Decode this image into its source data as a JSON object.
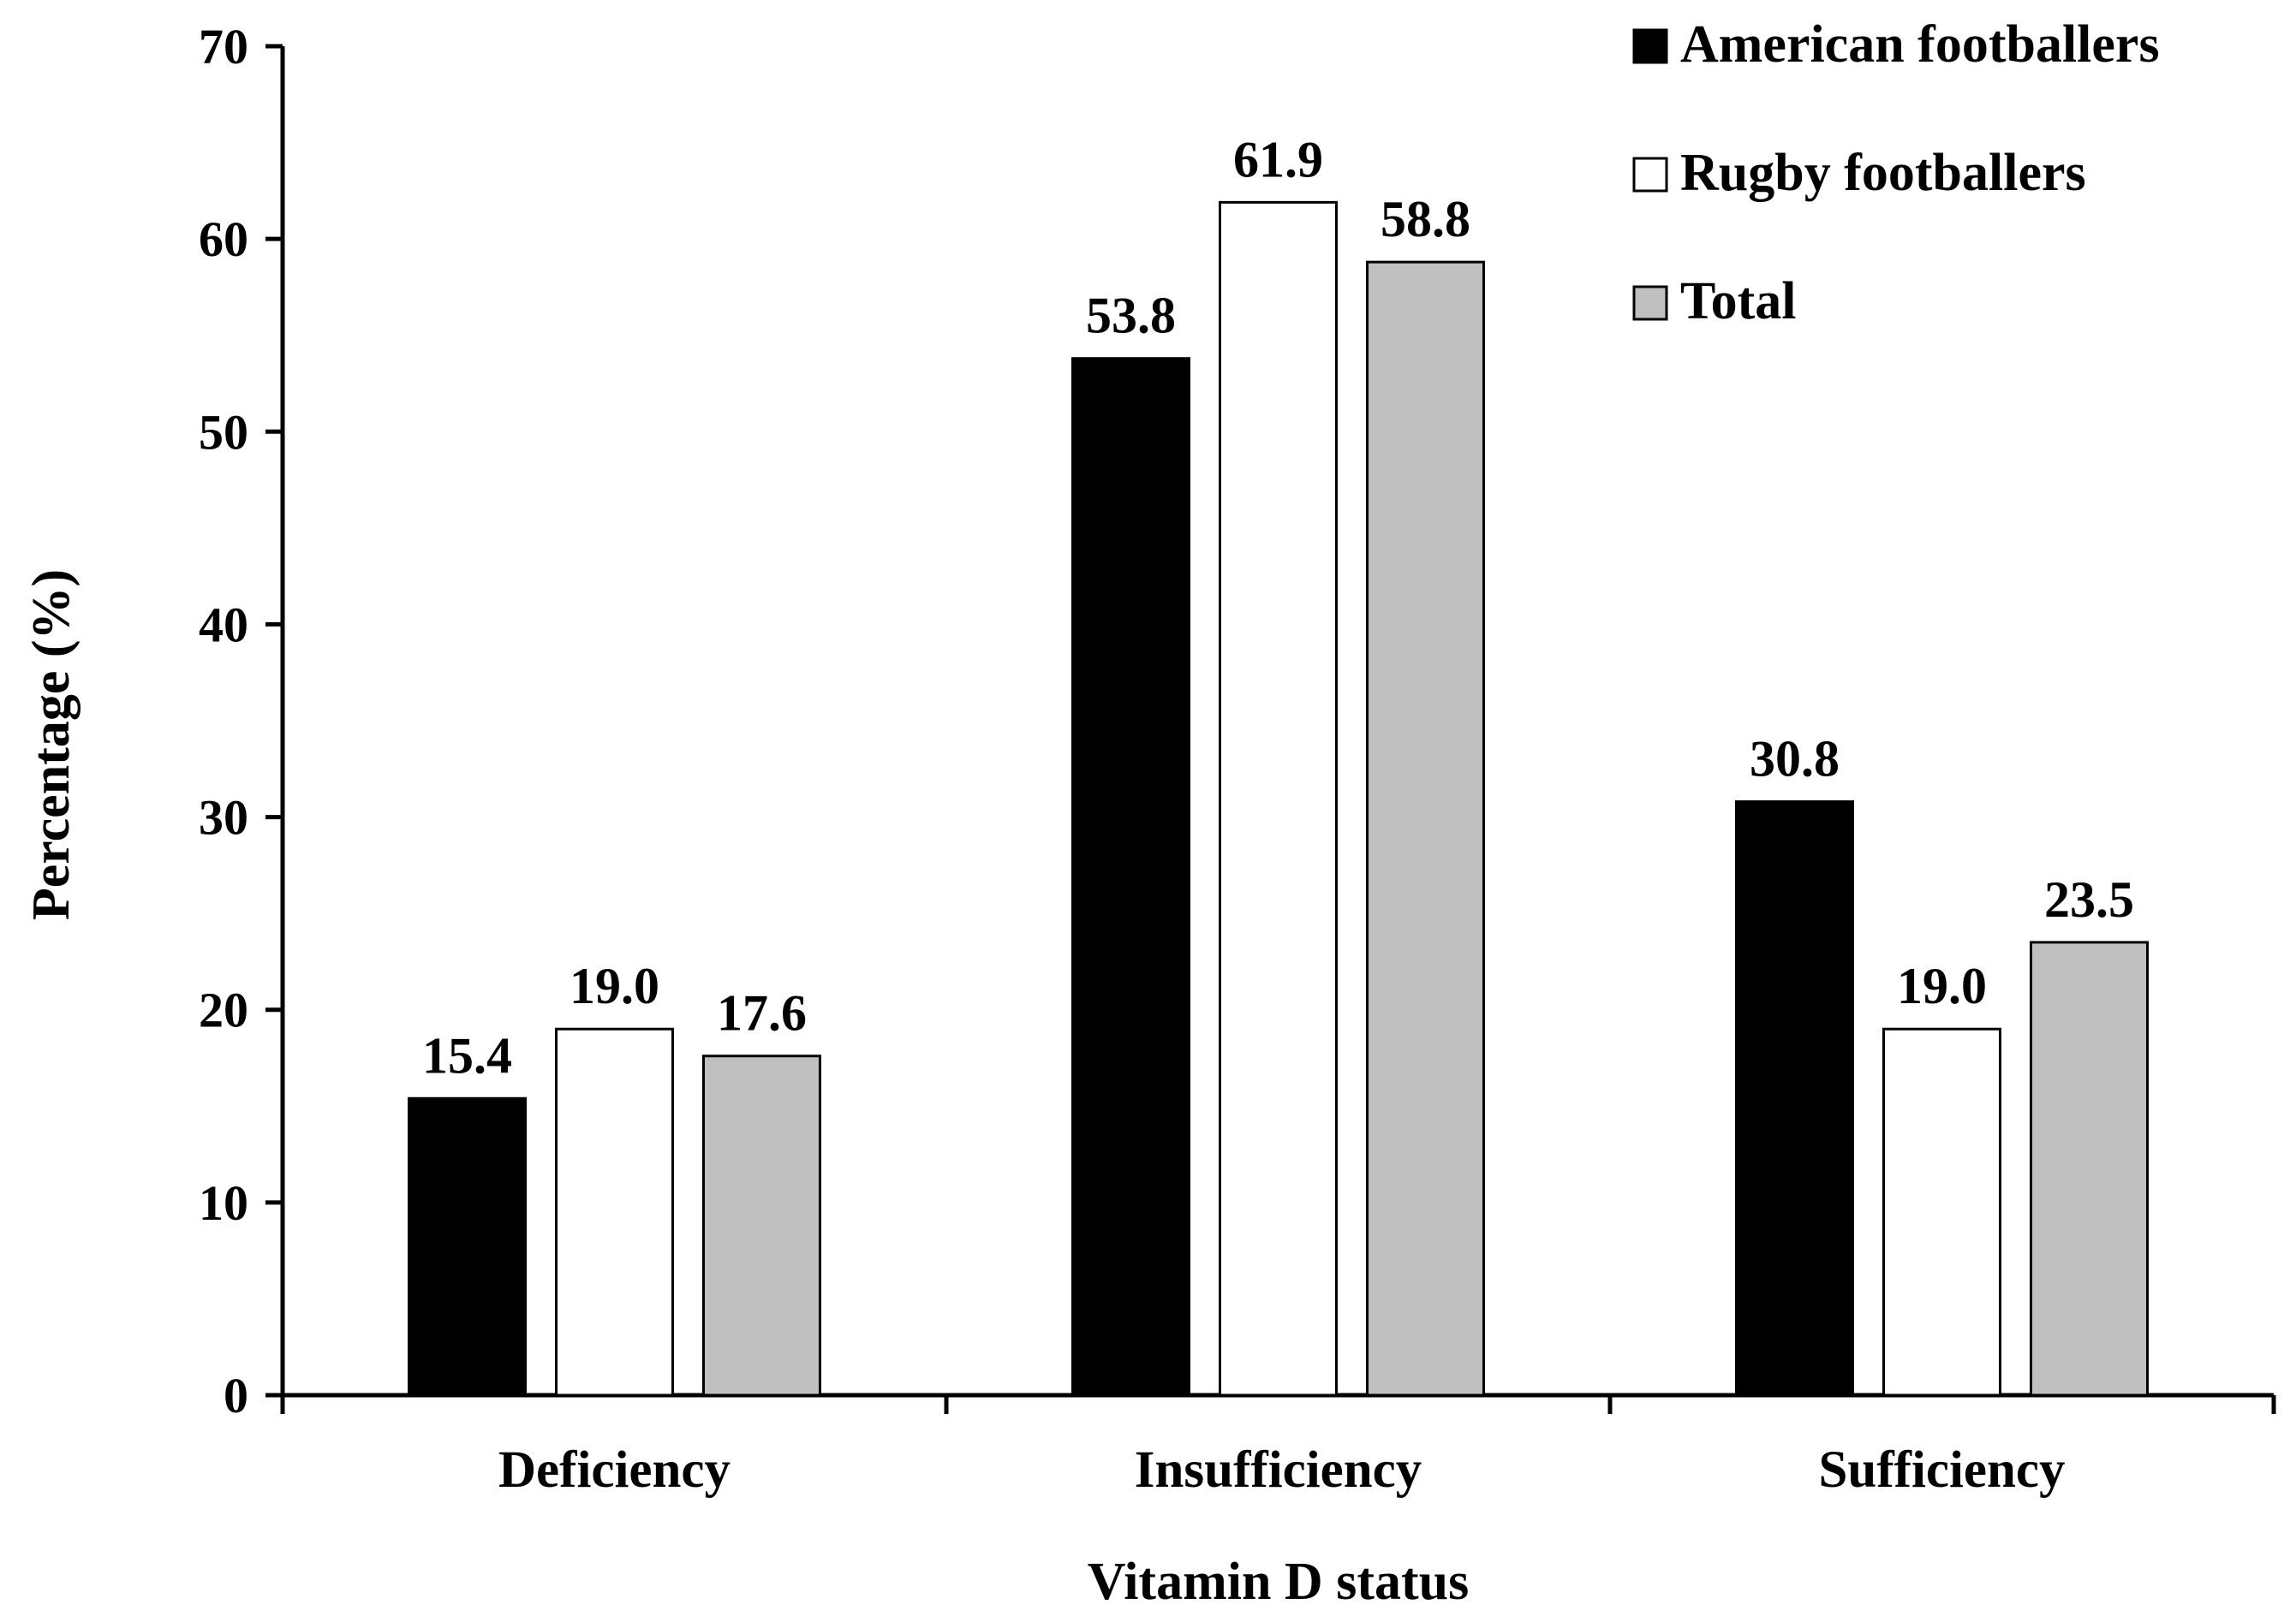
{
  "chart_data": {
    "type": "bar",
    "title": "",
    "xlabel": "Vitamin D status",
    "ylabel": "Percentage (%)",
    "ylim": [
      0,
      70
    ],
    "yticks": [
      0,
      10,
      20,
      30,
      40,
      50,
      60,
      70
    ],
    "categories": [
      "Deficiency",
      "Insufficiency",
      "Sufficiency"
    ],
    "series": [
      {
        "name": "American footballers",
        "values": [
          15.4,
          53.8,
          30.8
        ],
        "labels": [
          "15.4",
          "53.8",
          "30.8"
        ],
        "color": "#000000"
      },
      {
        "name": "Rugby footballers",
        "values": [
          19.0,
          61.9,
          19.0
        ],
        "labels": [
          "19.0",
          "61.9",
          "19.0"
        ],
        "color": "#ffffff"
      },
      {
        "name": "Total",
        "values": [
          17.6,
          58.8,
          23.5
        ],
        "labels": [
          "17.6",
          "58.8",
          "23.5"
        ],
        "color": "#c0c0c0"
      }
    ],
    "legend": "top-right",
    "grid": false
  }
}
